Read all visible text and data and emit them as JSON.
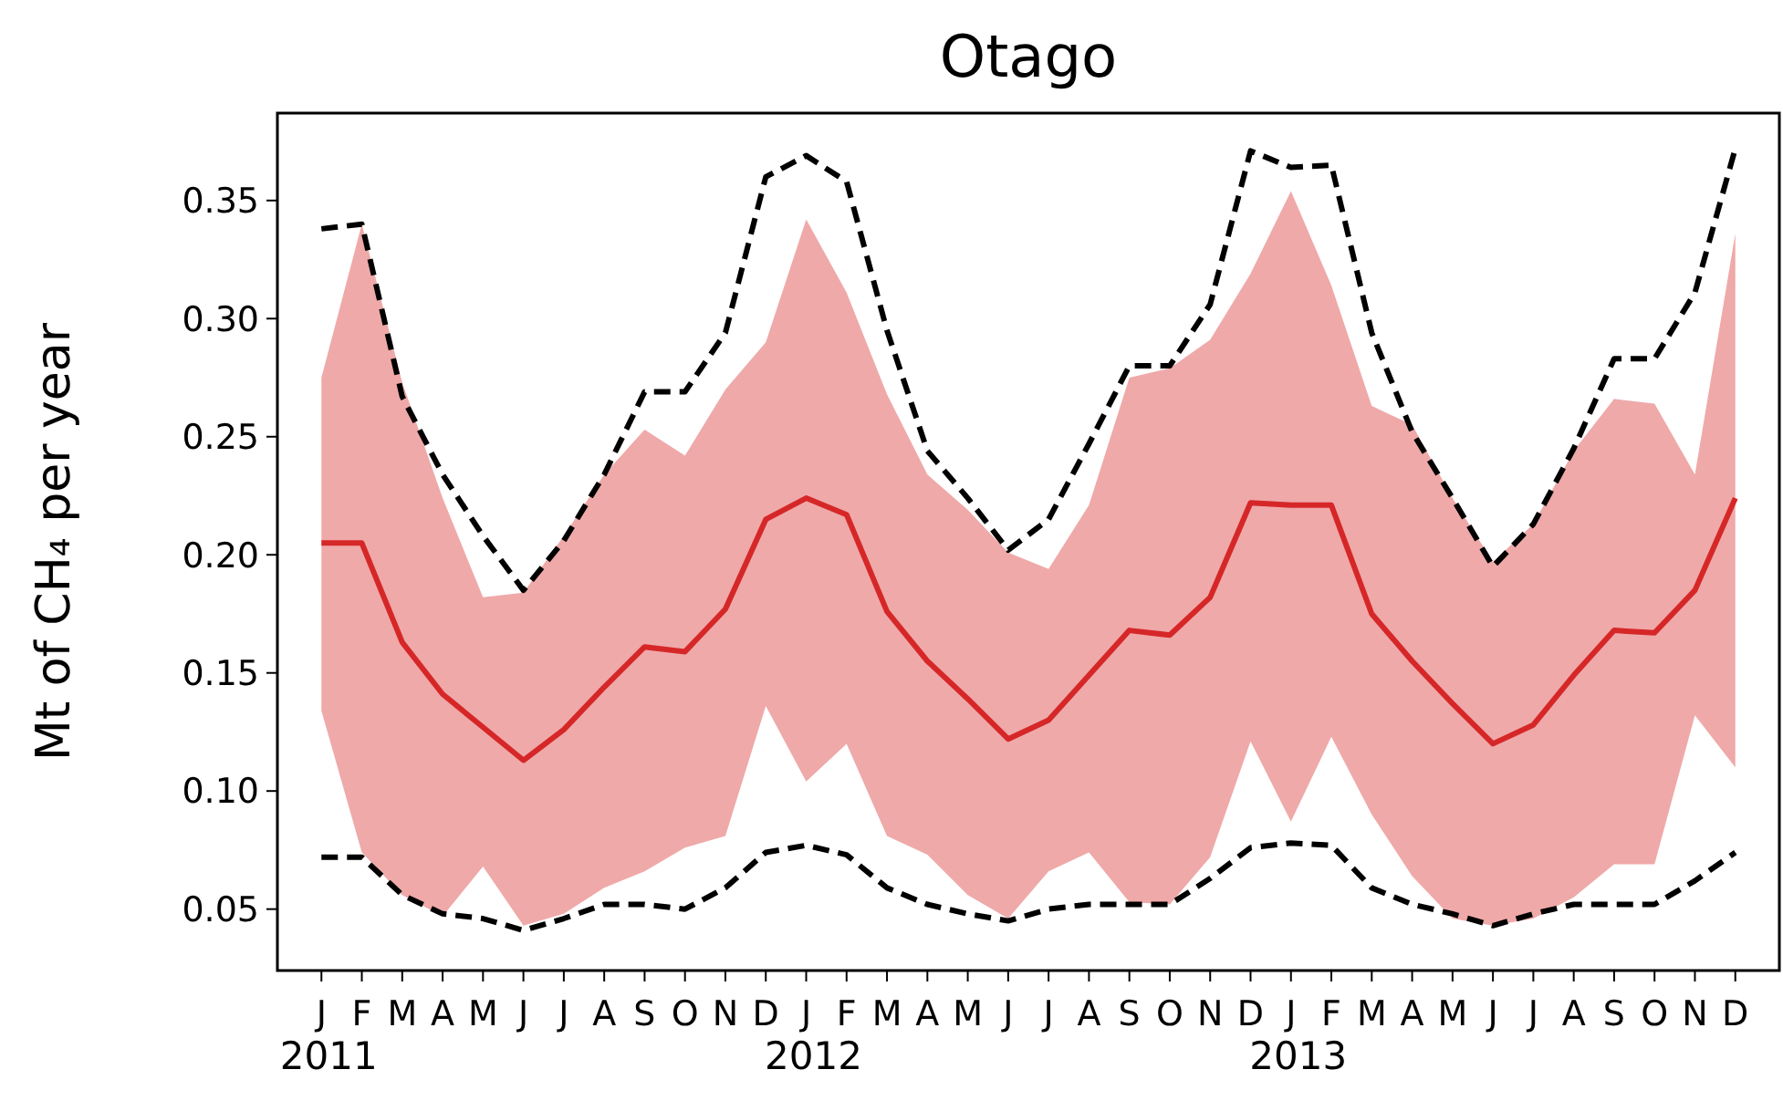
{
  "chart_data": {
    "type": "line",
    "title": "Otago",
    "ylabel": "Mt of CH₄ per year",
    "categories": [
      "J\n2011",
      "F",
      "M",
      "A",
      "M",
      "J",
      "J",
      "A",
      "S",
      "O",
      "N",
      "D",
      "J\n2012",
      "F",
      "M",
      "A",
      "M",
      "J",
      "J",
      "A",
      "S",
      "O",
      "N",
      "D",
      "J\n2013",
      "F",
      "M",
      "A",
      "M",
      "J",
      "J",
      "A",
      "S",
      "O",
      "N",
      "D"
    ],
    "series": [
      {
        "color": "#d62728",
        "line_style": "solid",
        "values": [
          0.205,
          0.205,
          0.163,
          0.141,
          0.127,
          0.113,
          0.126,
          0.144,
          0.161,
          0.159,
          0.177,
          0.215,
          0.224,
          0.217,
          0.176,
          0.155,
          0.139,
          0.122,
          0.13,
          0.149,
          0.168,
          0.166,
          0.182,
          0.222,
          0.221,
          0.221,
          0.175,
          0.155,
          0.137,
          0.12,
          0.128,
          0.149,
          0.168,
          0.167,
          0.185,
          0.224
        ],
        "upper": [
          0.275,
          0.34,
          0.273,
          0.224,
          0.182,
          0.184,
          0.208,
          0.234,
          0.253,
          0.242,
          0.27,
          0.29,
          0.342,
          0.311,
          0.268,
          0.234,
          0.219,
          0.201,
          0.194,
          0.221,
          0.275,
          0.279,
          0.291,
          0.319,
          0.354,
          0.314,
          0.263,
          0.255,
          0.224,
          0.197,
          0.213,
          0.244,
          0.266,
          0.264,
          0.234,
          0.336
        ],
        "lower": [
          0.134,
          0.074,
          0.056,
          0.047,
          0.068,
          0.043,
          0.048,
          0.059,
          0.066,
          0.076,
          0.081,
          0.136,
          0.104,
          0.12,
          0.081,
          0.073,
          0.056,
          0.046,
          0.066,
          0.074,
          0.053,
          0.052,
          0.072,
          0.121,
          0.087,
          0.123,
          0.09,
          0.064,
          0.046,
          0.043,
          0.046,
          0.055,
          0.069,
          0.069,
          0.132,
          0.11
        ]
      },
      {
        "color": "#000000",
        "line_style": "dashed",
        "values": [
          0.338,
          0.34,
          0.267,
          0.234,
          0.208,
          0.185,
          0.206,
          0.234,
          0.269,
          0.269,
          0.294,
          0.36,
          0.369,
          0.358,
          0.295,
          0.244,
          0.224,
          0.202,
          0.215,
          0.247,
          0.28,
          0.28,
          0.306,
          0.371,
          0.364,
          0.365,
          0.294,
          0.252,
          0.224,
          0.195,
          0.213,
          0.245,
          0.283,
          0.283,
          0.311,
          0.372
        ]
      },
      {
        "color": "#000000",
        "line_style": "dashed",
        "values": [
          0.072,
          0.072,
          0.056,
          0.048,
          0.046,
          0.041,
          0.046,
          0.052,
          0.052,
          0.05,
          0.059,
          0.074,
          0.077,
          0.073,
          0.059,
          0.052,
          0.048,
          0.045,
          0.05,
          0.052,
          0.052,
          0.052,
          0.063,
          0.076,
          0.078,
          0.077,
          0.059,
          0.052,
          0.048,
          0.043,
          0.048,
          0.052,
          0.052,
          0.052,
          0.062,
          0.074
        ]
      }
    ],
    "ylim": [
      0.024,
      0.387
    ],
    "yticks": [
      0.05,
      {
        "value": 0.1,
        "label": "0.10"
      },
      0.15,
      {
        "value": 0.2,
        "label": "0.20"
      },
      0.25,
      {
        "value": 0.3,
        "label": "0.30"
      },
      0.35
    ],
    "grid": false
  }
}
